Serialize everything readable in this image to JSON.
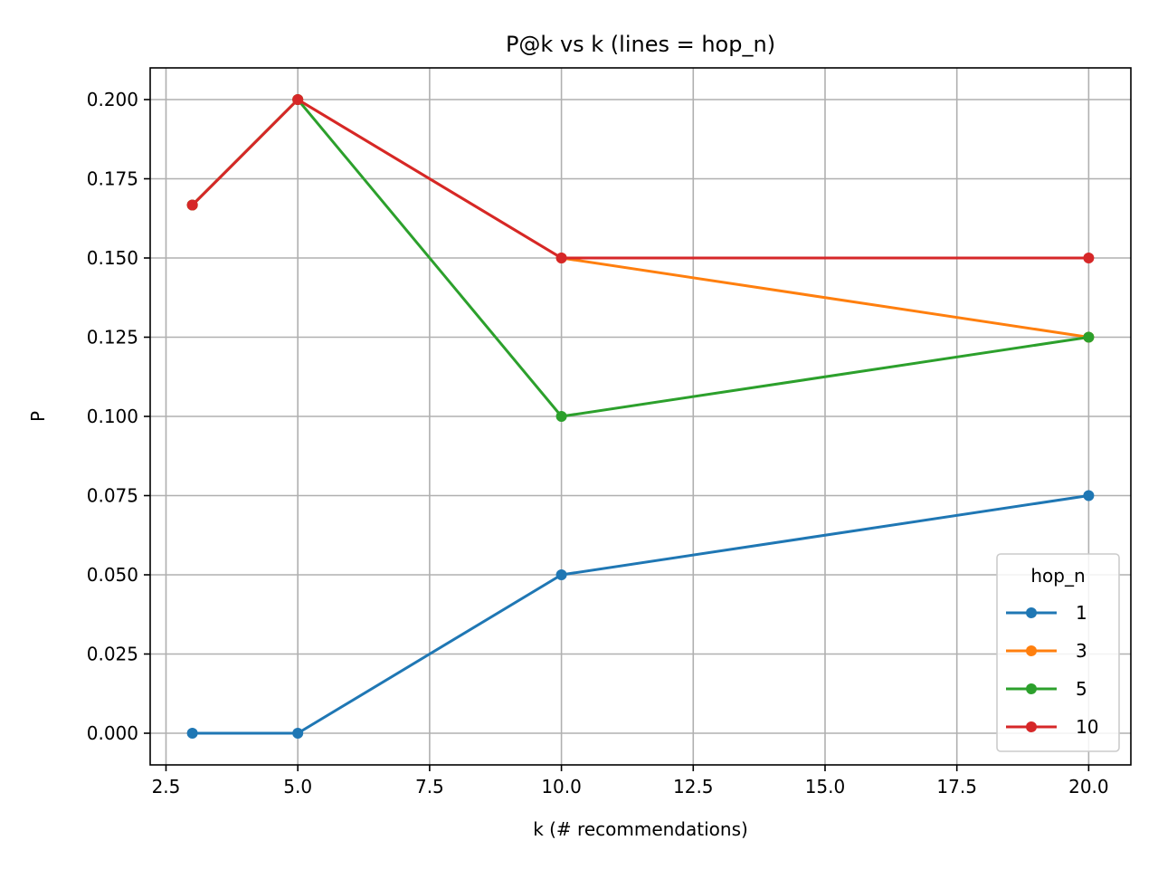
{
  "chart_data": {
    "type": "line",
    "title": "P@k vs k  (lines = hop_n)",
    "xlabel": "k  (# recommendations)",
    "ylabel": "P",
    "xlim": [
      2.2,
      20.8
    ],
    "ylim": [
      -0.01,
      0.21
    ],
    "xticks": [
      2.5,
      5.0,
      7.5,
      10.0,
      12.5,
      15.0,
      17.5,
      20.0
    ],
    "xtick_labels": [
      "2.5",
      "5.0",
      "7.5",
      "10.0",
      "12.5",
      "15.0",
      "17.5",
      "20.0"
    ],
    "yticks": [
      0.0,
      0.025,
      0.05,
      0.075,
      0.1,
      0.125,
      0.15,
      0.175,
      0.2
    ],
    "ytick_labels": [
      "0.000",
      "0.025",
      "0.050",
      "0.075",
      "0.100",
      "0.125",
      "0.150",
      "0.175",
      "0.200"
    ],
    "grid": true,
    "legend": {
      "title": "hop_n",
      "placement": "lower-right"
    },
    "series": [
      {
        "name": "1",
        "color": "#1f77b4",
        "x": [
          3,
          5,
          10,
          20
        ],
        "y": [
          0.0,
          0.0,
          0.05,
          0.075
        ]
      },
      {
        "name": "3",
        "color": "#ff7f0e",
        "x": [
          3,
          5,
          10,
          20
        ],
        "y": [
          0.1667,
          0.2,
          0.15,
          0.125
        ]
      },
      {
        "name": "5",
        "color": "#2ca02c",
        "x": [
          3,
          5,
          10,
          20
        ],
        "y": [
          0.1667,
          0.2,
          0.1,
          0.125
        ]
      },
      {
        "name": "10",
        "color": "#d62728",
        "x": [
          3,
          5,
          10,
          20
        ],
        "y": [
          0.1667,
          0.2,
          0.15,
          0.15
        ]
      }
    ]
  }
}
